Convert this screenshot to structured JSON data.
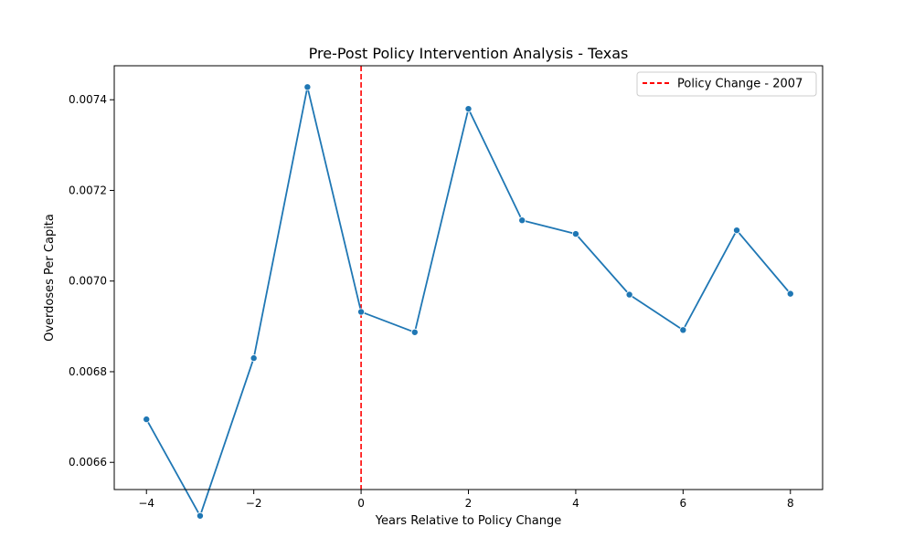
{
  "chart_data": {
    "type": "line",
    "title": "Pre-Post Policy Intervention Analysis - Texas",
    "xlabel": "Years Relative to Policy Change",
    "ylabel": "Overdoses Per Capita",
    "xlim": [
      -4.6,
      8.6
    ],
    "ylim": [
      0.00654,
      0.007475
    ],
    "x_ticks": [
      -4,
      -2,
      0,
      2,
      4,
      6,
      8
    ],
    "x_tick_labels": [
      "−4",
      "−2",
      "0",
      "2",
      "4",
      "6",
      "8"
    ],
    "y_ticks": [
      0.0066,
      0.0068,
      0.007,
      0.0072,
      0.0074
    ],
    "y_tick_labels": [
      "0.0066",
      "0.0068",
      "0.0070",
      "0.0072",
      "0.0074"
    ],
    "grid": false,
    "legend_position": "top-right",
    "series": [
      {
        "x": [
          -4,
          -3,
          -2,
          -1,
          0,
          1,
          2,
          3,
          4,
          5,
          6,
          7,
          8
        ],
        "y": [
          0.006695,
          0.006482,
          0.00683,
          0.007428,
          0.006932,
          0.006887,
          0.00738,
          0.007134,
          0.007104,
          0.00697,
          0.006892,
          0.007112,
          0.006972
        ],
        "color": "#1f77b4"
      }
    ],
    "annotations": [
      {
        "type": "vline",
        "x": 0,
        "label": "Policy Change - 2007",
        "color": "#ff0000",
        "style": "dashed"
      }
    ]
  }
}
